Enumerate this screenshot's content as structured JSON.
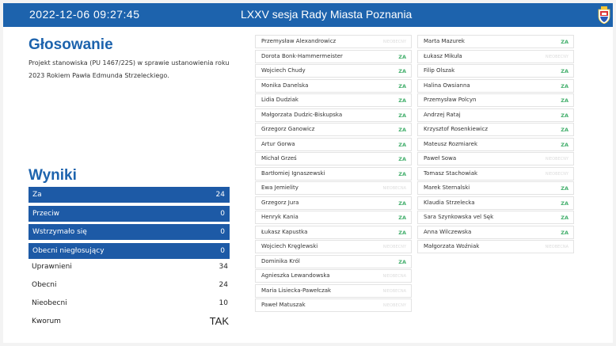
{
  "header": {
    "datetime": "2022-12-06  09:27:45",
    "title": "LXXV sesja Rady Miasta Poznania"
  },
  "voting": {
    "heading": "Głosowanie",
    "description": "Projekt stanowiska (PU 1467/22S) w sprawie ustanowienia roku 2023 Rokiem Pawła Edmunda Strzeleckiego."
  },
  "results": {
    "heading": "Wyniki",
    "bars": [
      {
        "label": "Za",
        "value": "24"
      },
      {
        "label": "Przeciw",
        "value": "0"
      },
      {
        "label": "Wstrzymało się",
        "value": "0"
      },
      {
        "label": "Obecni niegłosujący",
        "value": "0"
      }
    ],
    "stats": [
      {
        "label": "Uprawnieni",
        "value": "34"
      },
      {
        "label": "Obecni",
        "value": "24"
      },
      {
        "label": "Nieobecni",
        "value": "10"
      },
      {
        "label": "Kworum",
        "value": "TAK"
      }
    ]
  },
  "members_left": [
    {
      "name": "Przemysław Alexandrowicz",
      "status": "NIEOBECNY"
    },
    {
      "name": "Dorota Bonk-Hammermeister",
      "status": "ZA"
    },
    {
      "name": "Wojciech Chudy",
      "status": "ZA"
    },
    {
      "name": "Monika Danelska",
      "status": "ZA"
    },
    {
      "name": "Lidia Dudziak",
      "status": "ZA"
    },
    {
      "name": "Małgorzata Dudzic-Biskupska",
      "status": "ZA"
    },
    {
      "name": "Grzegorz Ganowicz",
      "status": "ZA"
    },
    {
      "name": "Artur Gorwa",
      "status": "ZA"
    },
    {
      "name": "Michał Grześ",
      "status": "ZA"
    },
    {
      "name": "Bartłomiej Ignaszewski",
      "status": "ZA"
    },
    {
      "name": "Ewa Jemielity",
      "status": "NIEOBECNA"
    },
    {
      "name": "Grzegorz Jura",
      "status": "ZA"
    },
    {
      "name": "Henryk Kania",
      "status": "ZA"
    },
    {
      "name": "Łukasz Kapustka",
      "status": "ZA"
    },
    {
      "name": "Wojciech Kręglewski",
      "status": "NIEOBECNY"
    },
    {
      "name": "Dominika Król",
      "status": "ZA"
    },
    {
      "name": "Agnieszka Lewandowska",
      "status": "NIEOBECNA"
    },
    {
      "name": "Maria Lisiecka-Pawełczak",
      "status": "NIEOBECNA"
    },
    {
      "name": "Paweł Matuszak",
      "status": "NIEOBECNY"
    }
  ],
  "members_right": [
    {
      "name": "Marta Mazurek",
      "status": "ZA"
    },
    {
      "name": "Łukasz Mikuła",
      "status": "NIEOBECNY"
    },
    {
      "name": "Filip Olszak",
      "status": "ZA"
    },
    {
      "name": "Halina Owsianna",
      "status": "ZA"
    },
    {
      "name": "Przemysław Polcyn",
      "status": "ZA"
    },
    {
      "name": "Andrzej Rataj",
      "status": "ZA"
    },
    {
      "name": "Krzysztof Rosenkiewicz",
      "status": "ZA"
    },
    {
      "name": "Mateusz Rozmiarek",
      "status": "ZA"
    },
    {
      "name": "Paweł Sowa",
      "status": "NIEOBECNY"
    },
    {
      "name": "Tomasz Stachowiak",
      "status": "NIEOBECNY"
    },
    {
      "name": "Marek Sternalski",
      "status": "ZA"
    },
    {
      "name": "Klaudia Strzelecka",
      "status": "ZA"
    },
    {
      "name": "Sara Szynkowska vel Sęk",
      "status": "ZA"
    },
    {
      "name": "Anna Wilczewska",
      "status": "ZA"
    },
    {
      "name": "Małgorzata Woźniak",
      "status": "NIEOBECNA"
    }
  ],
  "colors": {
    "header_bg": "#1d63ad",
    "bar_bg": "#1d5aa6",
    "za": "#45b06e",
    "absent": "#dcdcdc"
  },
  "icons": {
    "crest": "poznan-crest-icon"
  }
}
